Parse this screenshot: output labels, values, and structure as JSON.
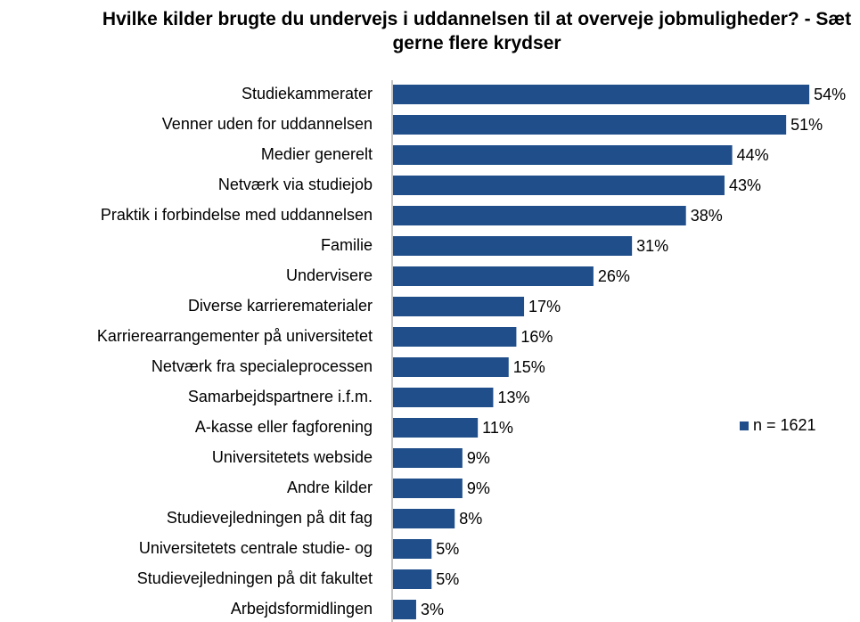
{
  "chart_data": {
    "type": "barh",
    "title": "Hvilke kilder brugte du undervejs i uddannelsen til at overveje jobmuligheder? - Sæt gerne flere krydser",
    "categories": [
      "Studiekammerater",
      "Venner uden for uddannelsen",
      "Medier generelt",
      "Netværk via studiejob",
      "Praktik i forbindelse med uddannelsen",
      "Familie",
      "Undervisere",
      "Diverse karrierematerialer",
      "Karrierearrangementer på universitetet",
      "Netværk fra specialeprocessen",
      "Samarbejdspartnere i.f.m.",
      "A-kasse eller fagforening",
      "Universitetets webside",
      "Andre kilder",
      "Studievejledningen på dit fag",
      "Universitetets centrale studie- og",
      "Studievejledningen på dit fakultet",
      "Arbejdsformidlingen"
    ],
    "series": [
      {
        "name": "n = 1621",
        "color": "#1f4e8a",
        "values": [
          54,
          51,
          44,
          43,
          38,
          31,
          26,
          17,
          16,
          15,
          13,
          11,
          9,
          9,
          8,
          5,
          5,
          3
        ],
        "value_labels": [
          "54%",
          "51%",
          "44%",
          "43%",
          "38%",
          "31%",
          "26%",
          "17%",
          "16%",
          "15%",
          "13%",
          "11%",
          "9%",
          "9%",
          "8%",
          "5%",
          "5%",
          "3%"
        ]
      }
    ],
    "legend": "right"
  }
}
